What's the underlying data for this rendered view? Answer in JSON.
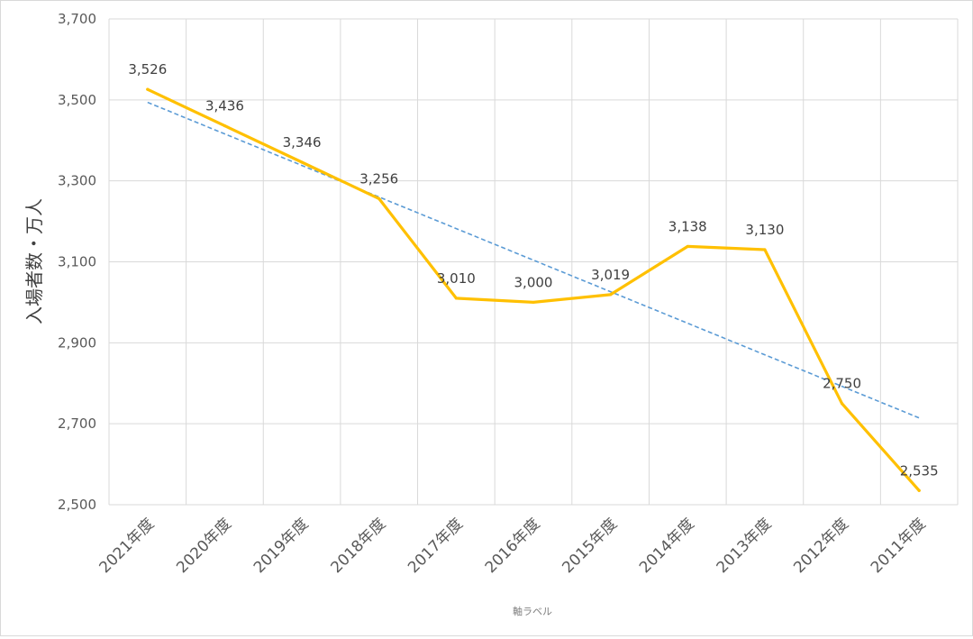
{
  "chart_data": {
    "type": "line",
    "categories": [
      "2021年度",
      "2020年度",
      "2019年度",
      "2018年度",
      "2017年度",
      "2016年度",
      "2015年度",
      "2014年度",
      "2013年度",
      "2012年度",
      "2011年度"
    ],
    "series": [
      {
        "values": [
          3526,
          3436,
          3346,
          3256,
          3010,
          3000,
          3019,
          3138,
          3130,
          2750,
          2535
        ],
        "color": "#ffc000",
        "style": "solid"
      }
    ],
    "trendline": {
      "type": "linear",
      "color": "#5b9bd5",
      "style": "dashed"
    },
    "data_labels": [
      "3,526",
      "3,436",
      "3,346",
      "3,256",
      "3,010",
      "3,000",
      "3,019",
      "3,138",
      "3,130",
      "2,750",
      "2,535"
    ],
    "ylim": [
      2500,
      3700
    ],
    "yticks": [
      2500,
      2700,
      2900,
      3100,
      3300,
      3500,
      3700
    ],
    "ytick_labels": [
      "2,500",
      "2,700",
      "2,900",
      "3,100",
      "3,300",
      "3,500",
      "3,700"
    ],
    "ylabel": "入場者数・万人",
    "xlabel": "軸ラベル",
    "grid": true,
    "legend": "none"
  }
}
